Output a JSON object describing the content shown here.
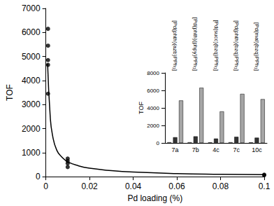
{
  "chart_data": [
    {
      "type": "scatter",
      "x_label": "Pd loading (%)",
      "y_label": "TOF",
      "xlim": [
        0,
        0.1
      ],
      "xticks": [
        0,
        0.02,
        0.04,
        0.06,
        0.08,
        0.1
      ],
      "ylim": [
        0,
        7000
      ],
      "yticks": [
        0,
        1000,
        2000,
        3000,
        4000,
        5000,
        6000,
        7000
      ],
      "grid": false,
      "series": [
        {
          "type": "scatter",
          "marker": "circle",
          "color": "#000000",
          "x": [
            0.001,
            0.001,
            0.001,
            0.001,
            0.001,
            0.01,
            0.01,
            0.01,
            0.01,
            0.1,
            0.1
          ],
          "values": [
            6150,
            5450,
            4850,
            4650,
            3450,
            750,
            650,
            550,
            400,
            80,
            60
          ]
        },
        {
          "type": "line",
          "line_style": "solid",
          "color": "#000000",
          "x": [
            0.0008,
            0.002,
            0.003,
            0.005,
            0.0075,
            0.01,
            0.015,
            0.02,
            0.03,
            0.04,
            0.06,
            0.08,
            0.1
          ],
          "values": [
            4700,
            2500,
            1750,
            1100,
            800,
            620,
            450,
            350,
            250,
            190,
            130,
            100,
            80
          ]
        }
      ]
    },
    {
      "type": "bar",
      "y_label": "TOF",
      "categories": [
        "7a",
        "7b",
        "4c",
        "7c",
        "10c"
      ],
      "category_annotations": [
        "[Pd(phth)(azb)PPh₃]",
        "[Pd(phth)(phpy)PPh₃]",
        "[Pd(succ)(bzq)PPh₃]",
        "[Pd(phth)(bzq)PPh₃]",
        "[Pd(mal)(bzq)PPh₃]"
      ],
      "ylim": [
        0,
        8000
      ],
      "yticks": [
        0,
        2000,
        4000,
        6000,
        8000
      ],
      "grid": false,
      "series": [
        {
          "color": "#d9d9d9",
          "values": [
            80,
            80,
            60,
            80,
            70
          ]
        },
        {
          "color": "#333333",
          "values": [
            650,
            750,
            500,
            700,
            600
          ]
        },
        {
          "color": "#a6a6a6",
          "values": [
            4850,
            6300,
            3600,
            5600,
            5000
          ]
        }
      ]
    }
  ]
}
